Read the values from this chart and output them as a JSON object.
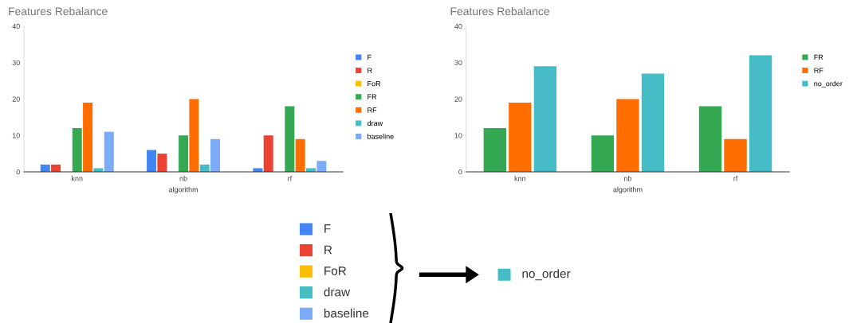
{
  "chart_data": [
    {
      "type": "bar",
      "title": "Features Rebalance",
      "xlabel": "algorithm",
      "categories": [
        "knn",
        "nb",
        "rf"
      ],
      "ylim": [
        0,
        40
      ],
      "yticks": [
        0,
        10,
        20,
        30,
        40
      ],
      "legend": "right",
      "grid": false,
      "series": [
        {
          "name": "F",
          "color": "#4285f4",
          "values": [
            2,
            6,
            1
          ]
        },
        {
          "name": "R",
          "color": "#ea4335",
          "values": [
            2,
            5,
            10
          ]
        },
        {
          "name": "FoR",
          "color": "#fbbc04",
          "values": [
            0,
            0,
            0
          ]
        },
        {
          "name": "FR",
          "color": "#34a853",
          "values": [
            12,
            10,
            18
          ]
        },
        {
          "name": "RF",
          "color": "#ff6d01",
          "values": [
            19,
            20,
            9
          ]
        },
        {
          "name": "draw",
          "color": "#46bdc6",
          "values": [
            1,
            2,
            1
          ]
        },
        {
          "name": "baseline",
          "color": "#7baaf7",
          "values": [
            11,
            9,
            3
          ]
        }
      ]
    },
    {
      "type": "bar",
      "title": "Features Rebalance",
      "xlabel": "algorithm",
      "categories": [
        "knn",
        "nb",
        "rf"
      ],
      "ylim": [
        0,
        40
      ],
      "yticks": [
        0,
        10,
        20,
        30,
        40
      ],
      "legend": "right",
      "grid": false,
      "series": [
        {
          "name": "FR",
          "color": "#34a853",
          "values": [
            12,
            10,
            18
          ]
        },
        {
          "name": "RF",
          "color": "#ff6d01",
          "values": [
            19,
            20,
            9
          ]
        },
        {
          "name": "no_order",
          "color": "#46bdc6",
          "values": [
            29,
            27,
            32
          ]
        }
      ]
    },
    {
      "type": "other",
      "categories": [
        "F",
        "R",
        "FoR",
        "draw",
        "baseline",
        "no_order"
      ],
      "colors": [
        "#4285f4",
        "#ea4335",
        "#fbbc04",
        "#46bdc6",
        "#7baaf7",
        "#46bdc6"
      ]
    }
  ]
}
